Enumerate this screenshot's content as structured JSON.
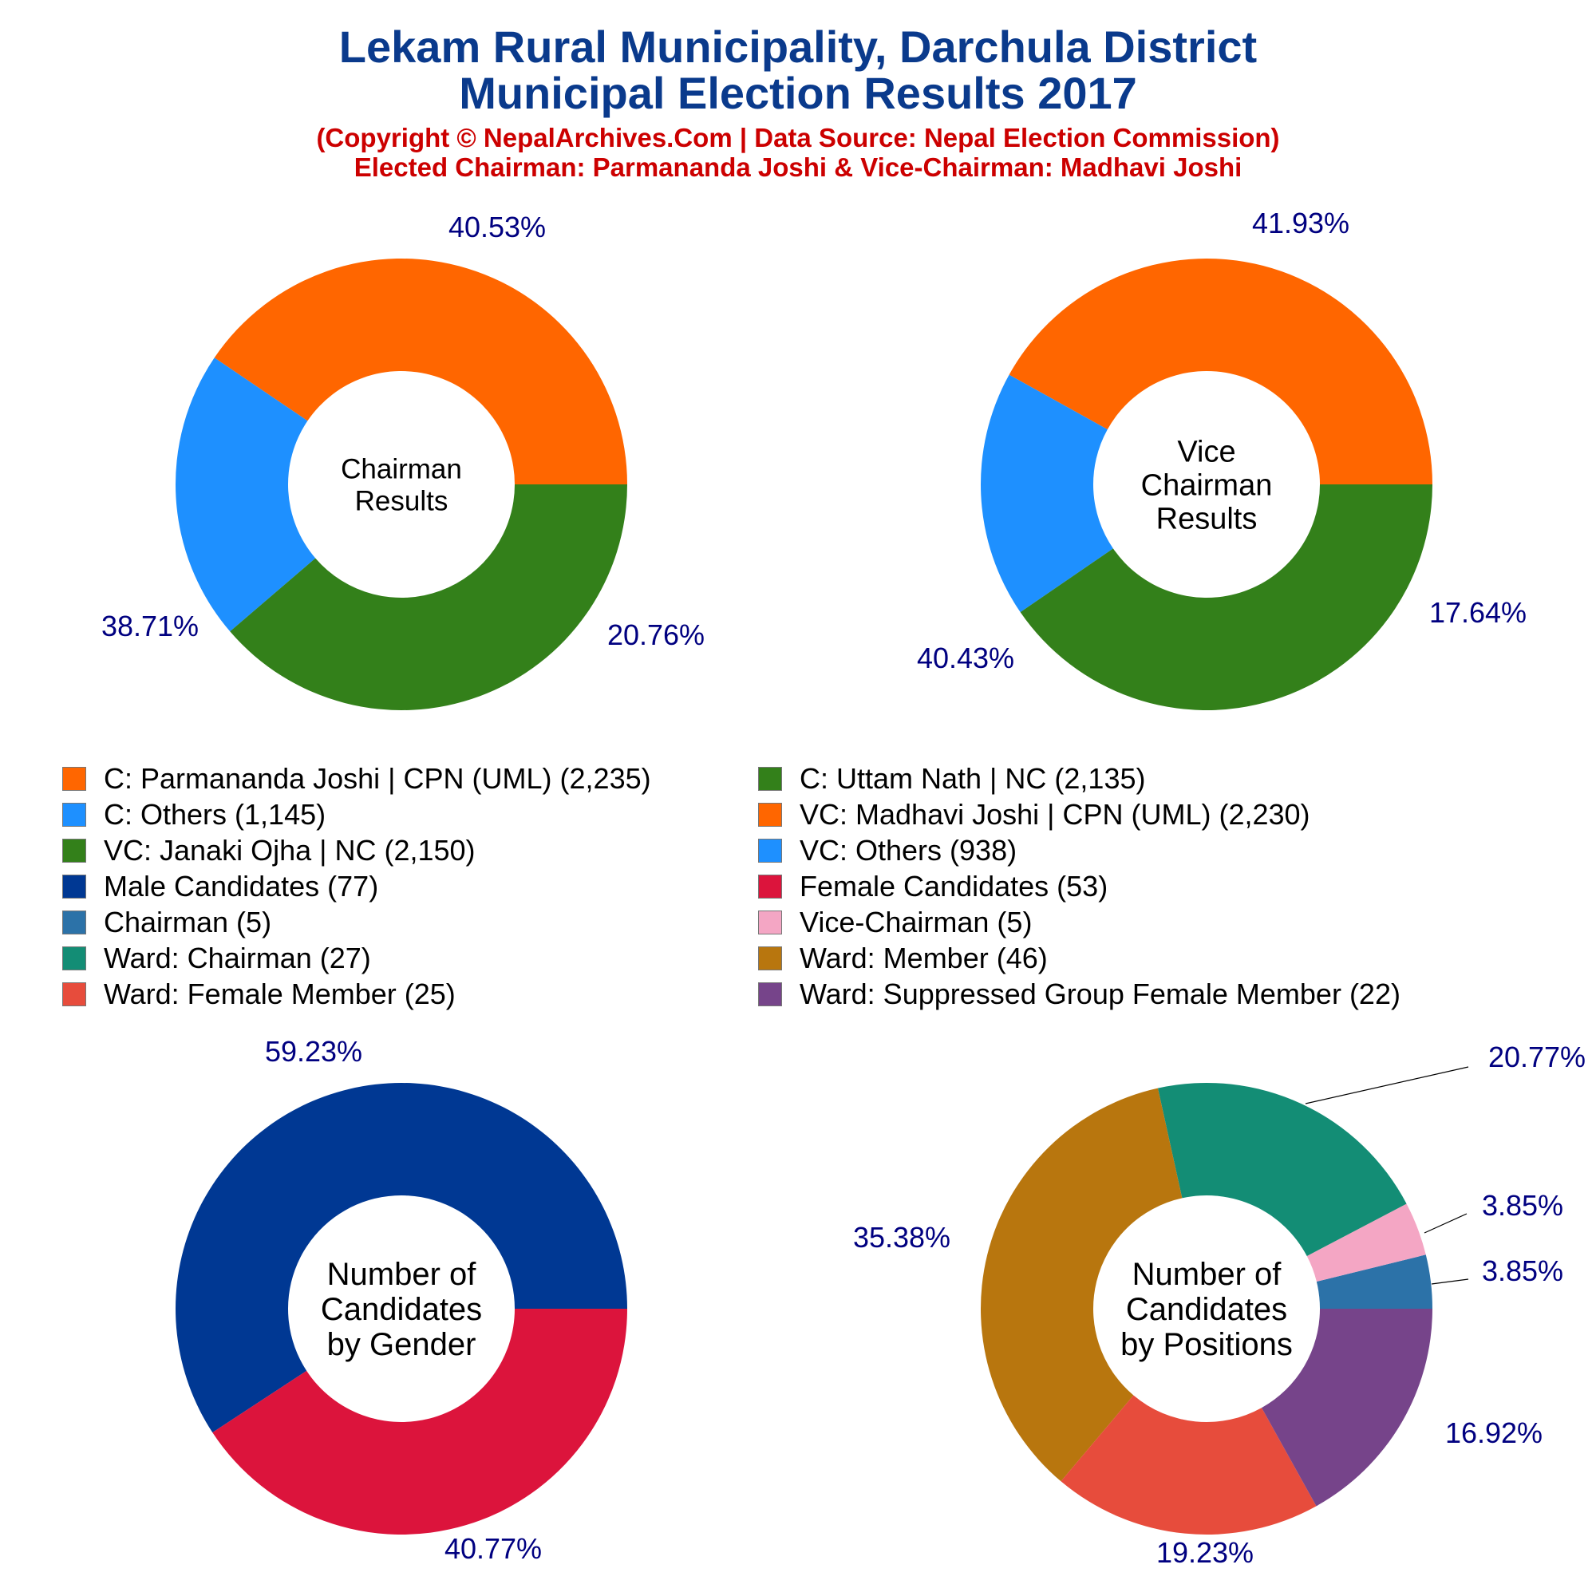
{
  "header": {
    "title_line1": "Lekam Rural Municipality, Darchula District",
    "title_line2": "Municipal Election Results 2017",
    "subtitle_line1": "(Copyright © NepalArchives.Com | Data Source: Nepal Election Commission)",
    "subtitle_line2": "Elected Chairman: Parmananda Joshi & Vice-Chairman: Madhavi Joshi"
  },
  "colors": {
    "title": "#0a3a8c",
    "subtitle": "#cc0000",
    "percent_label": "#000080"
  },
  "chart_data": [
    {
      "type": "pie",
      "donut": true,
      "center_label": [
        "Chairman",
        "Results"
      ],
      "slices": [
        {
          "label": "C: Parmananda Joshi | CPN (UML)",
          "value": 2235,
          "percent": "40.53%",
          "color": "#ff6600"
        },
        {
          "label": "C: Others",
          "value": 1145,
          "percent": "20.76%",
          "color": "#1e90ff"
        },
        {
          "label": "C: Uttam Nath | NC",
          "value": 2135,
          "percent": "38.71%",
          "color": "#33801a"
        }
      ]
    },
    {
      "type": "pie",
      "donut": true,
      "center_label": [
        "Vice",
        "Chairman",
        "Results"
      ],
      "slices": [
        {
          "label": "VC: Madhavi Joshi | CPN (UML)",
          "value": 2230,
          "percent": "41.93%",
          "color": "#ff6600"
        },
        {
          "label": "VC: Others",
          "value": 938,
          "percent": "17.64%",
          "color": "#1e90ff"
        },
        {
          "label": "VC: Janaki Ojha | NC",
          "value": 2150,
          "percent": "40.43%",
          "color": "#33801a"
        }
      ]
    },
    {
      "type": "pie",
      "donut": true,
      "center_label": [
        "Number of",
        "Candidates",
        "by Gender"
      ],
      "slices": [
        {
          "label": "Male Candidates",
          "value": 77,
          "percent": "59.23%",
          "color": "#003893"
        },
        {
          "label": "Female Candidates",
          "value": 53,
          "percent": "40.77%",
          "color": "#dc143c"
        }
      ]
    },
    {
      "type": "pie",
      "donut": true,
      "center_label": [
        "Number of",
        "Candidates",
        "by Positions"
      ],
      "slices": [
        {
          "label": "Chairman",
          "value": 5,
          "percent": "3.85%",
          "color": "#2c72a8"
        },
        {
          "label": "Vice-Chairman",
          "value": 5,
          "percent": "3.85%",
          "color": "#f4a6c4"
        },
        {
          "label": "Ward: Chairman",
          "value": 27,
          "percent": "20.77%",
          "color": "#138d75"
        },
        {
          "label": "Ward: Member",
          "value": 46,
          "percent": "35.38%",
          "color": "#b8760e"
        },
        {
          "label": "Ward: Female Member",
          "value": 25,
          "percent": "19.23%",
          "color": "#e74c3c"
        },
        {
          "label": "Ward: Suppressed Group Female Member",
          "value": 22,
          "percent": "16.92%",
          "color": "#76448a"
        }
      ]
    }
  ],
  "legend": [
    {
      "text": "C: Parmananda Joshi | CPN (UML) (2,235)",
      "color": "#ff6600"
    },
    {
      "text": "C: Uttam Nath | NC (2,135)",
      "color": "#33801a"
    },
    {
      "text": "C: Others (1,145)",
      "color": "#1e90ff"
    },
    {
      "text": "VC: Madhavi Joshi | CPN (UML) (2,230)",
      "color": "#ff6600"
    },
    {
      "text": "VC: Janaki Ojha | NC (2,150)",
      "color": "#33801a"
    },
    {
      "text": "VC: Others (938)",
      "color": "#1e90ff"
    },
    {
      "text": "Male Candidates (77)",
      "color": "#003893"
    },
    {
      "text": "Female Candidates (53)",
      "color": "#dc143c"
    },
    {
      "text": "Chairman (5)",
      "color": "#2c72a8"
    },
    {
      "text": "Vice-Chairman (5)",
      "color": "#f4a6c4"
    },
    {
      "text": "Ward: Chairman (27)",
      "color": "#138d75"
    },
    {
      "text": "Ward: Member (46)",
      "color": "#b8760e"
    },
    {
      "text": "Ward: Female Member (25)",
      "color": "#e74c3c"
    },
    {
      "text": "Ward: Suppressed Group Female Member (22)",
      "color": "#76448a"
    }
  ]
}
